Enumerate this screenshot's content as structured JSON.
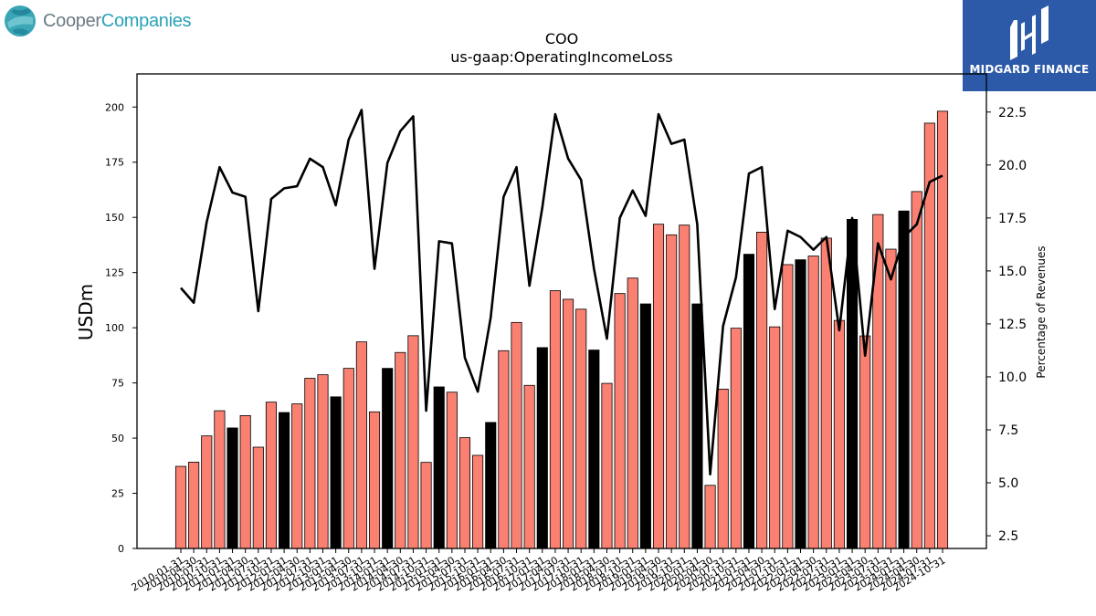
{
  "logos": {
    "cooper_part1": "Cooper",
    "cooper_part2": "Companies",
    "midgard": "MIDGARD FINANCE"
  },
  "colors": {
    "bar_default": "#fa8072",
    "bar_highlight": "#000000",
    "line": "#000000",
    "cooper_gray": "#6b7b85",
    "cooper_teal": "#2aa3b8",
    "midgard_blue": "#2c5aa8"
  },
  "chart_data": {
    "type": "bar",
    "title": "COO",
    "subtitle": "us-gaap:OperatingIncomeLoss",
    "ylabel": "USDm",
    "y2label": "Percentage of Revenues",
    "ylim": [
      0,
      215
    ],
    "y2lim": [
      1.9,
      24.3
    ],
    "yticks": [
      0,
      25,
      50,
      75,
      100,
      125,
      150,
      175,
      200
    ],
    "y2ticks": [
      "2.5",
      "5.0",
      "7.5",
      "10.0",
      "12.5",
      "15.0",
      "17.5",
      "20.0",
      "22.5"
    ],
    "categories": [
      "2010-01-31",
      "2010-04-30",
      "2010-07-31",
      "2010-10-31",
      "2011-01-31",
      "2011-04-30",
      "2011-07-31",
      "2011-10-31",
      "2012-01-31",
      "2012-04-30",
      "2012-07-31",
      "2012-10-31",
      "2013-01-31",
      "2013-04-30",
      "2013-07-31",
      "2013-10-31",
      "2014-01-31",
      "2014-04-30",
      "2014-07-31",
      "2014-10-31",
      "2015-01-31",
      "2015-04-30",
      "2015-07-31",
      "2015-10-31",
      "2016-01-31",
      "2016-04-30",
      "2016-07-31",
      "2016-10-31",
      "2017-01-31",
      "2017-04-30",
      "2017-07-31",
      "2017-10-31",
      "2018-01-31",
      "2018-04-30",
      "2018-07-31",
      "2018-10-31",
      "2019-01-31",
      "2019-04-30",
      "2019-07-31",
      "2019-10-31",
      "2020-01-31",
      "2020-04-30",
      "2020-07-31",
      "2020-10-31",
      "2021-01-31",
      "2021-04-30",
      "2021-07-31",
      "2021-10-31",
      "2022-01-31",
      "2022-04-30",
      "2022-07-31",
      "2022-10-31",
      "2023-01-31",
      "2023-04-30",
      "2023-07-31",
      "2023-10-31",
      "2024-01-31",
      "2024-04-30",
      "2024-07-31",
      "2024-10-31"
    ],
    "series": [
      {
        "type": "bar",
        "axis": "left",
        "values": [
          37.2,
          39.1,
          51.0,
          62.4,
          54.6,
          60.2,
          45.9,
          66.3,
          61.6,
          65.5,
          77.1,
          78.7,
          68.7,
          81.6,
          93.6,
          61.9,
          81.6,
          88.8,
          96.4,
          39.0,
          73.2,
          70.8,
          50.2,
          42.2,
          57.1,
          89.6,
          102.4,
          73.9,
          91.0,
          116.8,
          112.9,
          108.4,
          89.9,
          74.8,
          115.5,
          122.5,
          110.8,
          146.9,
          142.1,
          146.5,
          110.8,
          28.6,
          72.2,
          99.8,
          133.3,
          143.3,
          100.4,
          128.6,
          130.8,
          132.5,
          140.6,
          103.3,
          149.1,
          96.3,
          151.3,
          135.6,
          152.9,
          161.7,
          192.7,
          198.1
        ],
        "highlight": [
          false,
          false,
          false,
          false,
          true,
          false,
          false,
          false,
          true,
          false,
          false,
          false,
          true,
          false,
          false,
          false,
          true,
          false,
          false,
          false,
          true,
          false,
          false,
          false,
          true,
          false,
          false,
          false,
          true,
          false,
          false,
          false,
          true,
          false,
          false,
          false,
          true,
          false,
          false,
          false,
          true,
          false,
          false,
          false,
          true,
          false,
          false,
          false,
          true,
          false,
          false,
          false,
          true,
          false,
          false,
          false,
          true,
          false,
          false,
          false
        ]
      },
      {
        "type": "line",
        "axis": "right",
        "values": [
          14.2,
          13.5,
          17.3,
          19.9,
          18.7,
          18.5,
          13.1,
          18.4,
          18.9,
          19.0,
          20.3,
          19.9,
          18.1,
          21.2,
          22.6,
          15.1,
          20.1,
          21.6,
          22.3,
          8.4,
          16.4,
          16.3,
          10.9,
          9.3,
          12.8,
          18.5,
          19.9,
          14.3,
          18.0,
          22.4,
          20.3,
          19.3,
          15.1,
          11.8,
          17.5,
          18.8,
          17.6,
          22.4,
          21.0,
          21.2,
          17.2,
          5.4,
          12.4,
          14.7,
          19.6,
          19.9,
          13.2,
          16.9,
          16.6,
          16.0,
          16.6,
          12.2,
          17.5,
          11.0,
          16.3,
          14.6,
          16.6,
          17.2,
          19.2,
          19.5
        ]
      }
    ]
  }
}
